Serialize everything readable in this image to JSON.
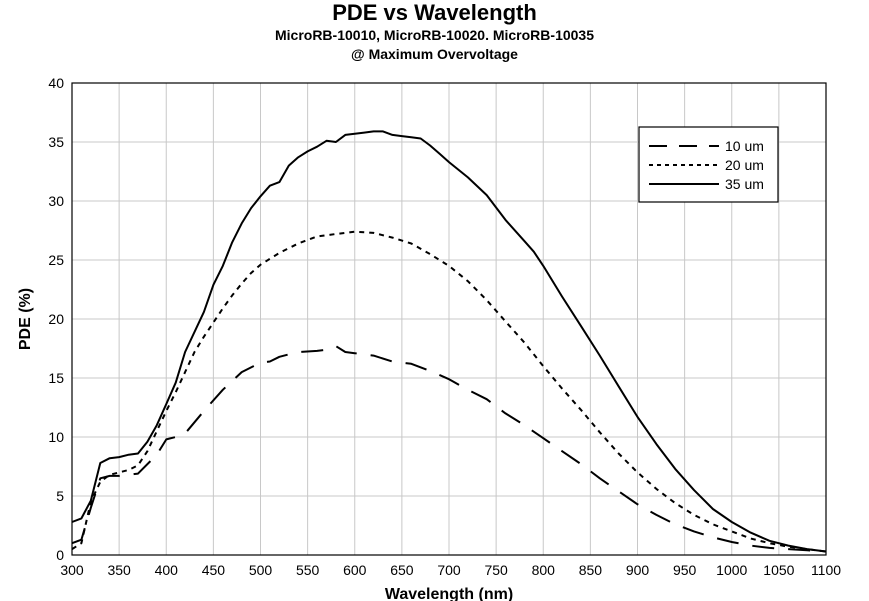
{
  "chart_data": {
    "type": "line",
    "title": "PDE vs Wavelength",
    "subtitle_lines": [
      "MicroRB-10010, MicroRB-10020. MicroRB-10035",
      "@ Maximum Overvoltage"
    ],
    "xlabel": "Wavelength (nm)",
    "ylabel": "PDE (%)",
    "xlim": [
      300,
      1100
    ],
    "ylim": [
      0,
      40
    ],
    "x_ticks": [
      300,
      350,
      400,
      450,
      500,
      550,
      600,
      650,
      700,
      750,
      800,
      850,
      900,
      950,
      1000,
      1050,
      1100
    ],
    "y_ticks": [
      0,
      5,
      10,
      15,
      20,
      25,
      30,
      35,
      40
    ],
    "grid": true,
    "legend_position": "top-right",
    "series": [
      {
        "name": "10 um",
        "line_style": "long-dash",
        "points": [
          [
            300,
            1.0
          ],
          [
            310,
            1.3
          ],
          [
            320,
            4.0
          ],
          [
            330,
            6.5
          ],
          [
            340,
            6.7
          ],
          [
            350,
            6.7
          ],
          [
            360,
            6.8
          ],
          [
            370,
            6.9
          ],
          [
            390,
            8.5
          ],
          [
            400,
            9.8
          ],
          [
            410,
            10.0
          ],
          [
            420,
            10.3
          ],
          [
            440,
            12.2
          ],
          [
            460,
            14.0
          ],
          [
            480,
            15.5
          ],
          [
            500,
            16.3
          ],
          [
            510,
            16.4
          ],
          [
            520,
            16.8
          ],
          [
            540,
            17.2
          ],
          [
            560,
            17.3
          ],
          [
            570,
            17.4
          ],
          [
            580,
            17.7
          ],
          [
            590,
            17.2
          ],
          [
            600,
            17.1
          ],
          [
            620,
            16.9
          ],
          [
            640,
            16.4
          ],
          [
            660,
            16.2
          ],
          [
            680,
            15.6
          ],
          [
            700,
            14.9
          ],
          [
            720,
            14.0
          ],
          [
            740,
            13.2
          ],
          [
            760,
            12.0
          ],
          [
            780,
            11.0
          ],
          [
            800,
            9.9
          ],
          [
            820,
            8.8
          ],
          [
            840,
            7.7
          ],
          [
            860,
            6.5
          ],
          [
            880,
            5.4
          ],
          [
            900,
            4.3
          ],
          [
            920,
            3.4
          ],
          [
            940,
            2.6
          ],
          [
            960,
            2.0
          ],
          [
            980,
            1.5
          ],
          [
            1000,
            1.1
          ],
          [
            1020,
            0.8
          ],
          [
            1040,
            0.6
          ],
          [
            1060,
            0.5
          ],
          [
            1080,
            0.4
          ],
          [
            1100,
            0.3
          ]
        ]
      },
      {
        "name": "20 um",
        "line_style": "short-dash",
        "points": [
          [
            300,
            0.5
          ],
          [
            310,
            1.0
          ],
          [
            320,
            4.5
          ],
          [
            330,
            6.2
          ],
          [
            340,
            6.8
          ],
          [
            350,
            7.0
          ],
          [
            360,
            7.2
          ],
          [
            370,
            7.6
          ],
          [
            380,
            8.8
          ],
          [
            390,
            10.5
          ],
          [
            400,
            12.2
          ],
          [
            410,
            13.8
          ],
          [
            420,
            15.5
          ],
          [
            430,
            17.2
          ],
          [
            440,
            18.5
          ],
          [
            450,
            19.7
          ],
          [
            460,
            20.9
          ],
          [
            470,
            22.0
          ],
          [
            480,
            23.0
          ],
          [
            490,
            23.9
          ],
          [
            500,
            24.6
          ],
          [
            520,
            25.6
          ],
          [
            540,
            26.4
          ],
          [
            560,
            27.0
          ],
          [
            580,
            27.2
          ],
          [
            600,
            27.4
          ],
          [
            620,
            27.3
          ],
          [
            640,
            26.9
          ],
          [
            660,
            26.4
          ],
          [
            680,
            25.5
          ],
          [
            700,
            24.5
          ],
          [
            720,
            23.2
          ],
          [
            740,
            21.6
          ],
          [
            760,
            19.8
          ],
          [
            780,
            18.0
          ],
          [
            800,
            16.0
          ],
          [
            820,
            14.1
          ],
          [
            840,
            12.3
          ],
          [
            860,
            10.4
          ],
          [
            880,
            8.6
          ],
          [
            900,
            7.0
          ],
          [
            920,
            5.6
          ],
          [
            940,
            4.4
          ],
          [
            960,
            3.4
          ],
          [
            980,
            2.6
          ],
          [
            1000,
            2.0
          ],
          [
            1020,
            1.4
          ],
          [
            1040,
            1.0
          ],
          [
            1060,
            0.7
          ],
          [
            1080,
            0.5
          ],
          [
            1100,
            0.3
          ]
        ]
      },
      {
        "name": "35 um",
        "line_style": "solid",
        "points": [
          [
            300,
            2.8
          ],
          [
            310,
            3.1
          ],
          [
            320,
            4.6
          ],
          [
            330,
            7.8
          ],
          [
            340,
            8.2
          ],
          [
            350,
            8.3
          ],
          [
            360,
            8.5
          ],
          [
            370,
            8.6
          ],
          [
            380,
            9.6
          ],
          [
            390,
            11.0
          ],
          [
            400,
            12.8
          ],
          [
            410,
            14.6
          ],
          [
            420,
            17.2
          ],
          [
            440,
            20.6
          ],
          [
            450,
            22.9
          ],
          [
            460,
            24.5
          ],
          [
            470,
            26.5
          ],
          [
            480,
            28.1
          ],
          [
            490,
            29.4
          ],
          [
            500,
            30.4
          ],
          [
            510,
            31.3
          ],
          [
            520,
            31.6
          ],
          [
            530,
            33.0
          ],
          [
            540,
            33.7
          ],
          [
            550,
            34.2
          ],
          [
            560,
            34.6
          ],
          [
            570,
            35.1
          ],
          [
            580,
            35.0
          ],
          [
            590,
            35.6
          ],
          [
            600,
            35.7
          ],
          [
            610,
            35.8
          ],
          [
            620,
            35.9
          ],
          [
            630,
            35.9
          ],
          [
            640,
            35.6
          ],
          [
            650,
            35.5
          ],
          [
            660,
            35.4
          ],
          [
            670,
            35.3
          ],
          [
            680,
            34.7
          ],
          [
            690,
            34.0
          ],
          [
            700,
            33.3
          ],
          [
            720,
            32.0
          ],
          [
            740,
            30.5
          ],
          [
            760,
            28.4
          ],
          [
            780,
            26.6
          ],
          [
            790,
            25.7
          ],
          [
            800,
            24.5
          ],
          [
            820,
            21.9
          ],
          [
            840,
            19.4
          ],
          [
            860,
            16.9
          ],
          [
            880,
            14.3
          ],
          [
            900,
            11.7
          ],
          [
            920,
            9.4
          ],
          [
            940,
            7.3
          ],
          [
            960,
            5.5
          ],
          [
            980,
            3.9
          ],
          [
            1000,
            2.8
          ],
          [
            1020,
            1.9
          ],
          [
            1040,
            1.2
          ],
          [
            1060,
            0.8
          ],
          [
            1080,
            0.5
          ],
          [
            1100,
            0.3
          ]
        ]
      }
    ]
  }
}
